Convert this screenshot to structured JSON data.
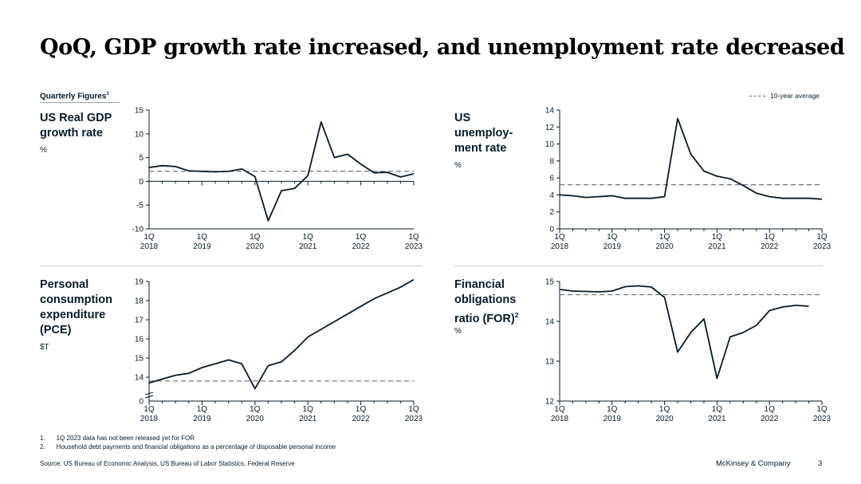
{
  "title": "QoQ, GDP growth rate increased, and unemployment rate decreased",
  "subhead": "Quarterly Figures",
  "subhead_sup": "1",
  "legend_label": "10-year average",
  "x_ticks": [
    {
      "q": "1Q",
      "y": "2018"
    },
    {
      "q": "1Q",
      "y": "2019"
    },
    {
      "q": "1Q",
      "y": "2020"
    },
    {
      "q": "1Q",
      "y": "2021"
    },
    {
      "q": "1Q",
      "y": "2022"
    },
    {
      "q": "1Q",
      "y": "2023"
    }
  ],
  "colors": {
    "line": "#051c2c",
    "avg": "#6b757d",
    "axis": "#051c2c"
  },
  "chart_data": [
    {
      "type": "line",
      "id": "gdp",
      "title_lines": [
        "US Real GDP",
        "growth rate"
      ],
      "unit": "%",
      "ylim": [
        -10,
        15
      ],
      "yticks": [
        -10,
        -5,
        0,
        5,
        10,
        15
      ],
      "values": [
        2.9,
        3.3,
        3.1,
        2.2,
        2.1,
        2.0,
        2.1,
        2.6,
        1.0,
        -8.3,
        -2.0,
        -1.5,
        1.2,
        12.5,
        5.0,
        5.7,
        3.6,
        1.8,
        1.9,
        0.9,
        1.6
      ],
      "avg": 2.1
    },
    {
      "type": "line",
      "id": "unemployment",
      "title_lines": [
        "US",
        "unemploy-",
        "ment rate"
      ],
      "unit": "%",
      "ylim": [
        0,
        14
      ],
      "yticks": [
        0,
        2,
        4,
        6,
        8,
        10,
        12,
        14
      ],
      "values": [
        4.0,
        3.9,
        3.7,
        3.8,
        3.9,
        3.6,
        3.6,
        3.6,
        3.8,
        13.0,
        8.8,
        6.8,
        6.2,
        5.9,
        5.1,
        4.2,
        3.8,
        3.6,
        3.6,
        3.6,
        3.5
      ],
      "avg": 5.2
    },
    {
      "type": "line",
      "id": "pce",
      "title_lines": [
        "Personal",
        "consumption",
        "expenditure",
        "(PCE)"
      ],
      "unit": "$T",
      "ylim": [
        13,
        19
      ],
      "axis_break": true,
      "yticks": [
        14,
        15,
        16,
        17,
        18,
        19
      ],
      "ytick_labels": [
        "14",
        "15",
        "16",
        "17",
        "18",
        "19"
      ],
      "zero_label": "0",
      "values": [
        13.7,
        13.9,
        14.1,
        14.2,
        14.5,
        14.7,
        14.9,
        14.7,
        13.4,
        14.6,
        14.8,
        15.4,
        16.1,
        16.5,
        16.9,
        17.3,
        17.7,
        18.1,
        18.4,
        18.7,
        19.1
      ],
      "avg": 13.8
    },
    {
      "type": "line",
      "id": "for",
      "title_lines": [
        "Financial",
        "obligations",
        "ratio (FOR)"
      ],
      "title_sup": "2",
      "unit": "%",
      "ylim": [
        12,
        15
      ],
      "yticks": [
        12,
        13,
        14,
        15
      ],
      "values": [
        14.8,
        14.76,
        14.75,
        14.74,
        14.76,
        14.87,
        14.89,
        14.86,
        14.6,
        13.23,
        13.72,
        14.06,
        12.57,
        13.61,
        13.72,
        13.9,
        14.27,
        14.36,
        14.4,
        14.38
      ],
      "avg": 14.67
    }
  ],
  "footnotes": [
    {
      "num": "1.",
      "text": "1Q 2023 data has not been released yet for FOR"
    },
    {
      "num": "2.",
      "text": "Household debt payments and financial obligations as a percentage of disposable personal income"
    }
  ],
  "source": "Source: US Bureau of Economic Analysis, US Bureau of Labor Statistics, Federal Reserve",
  "brand": "McKinsey & Company",
  "page_number": "3"
}
